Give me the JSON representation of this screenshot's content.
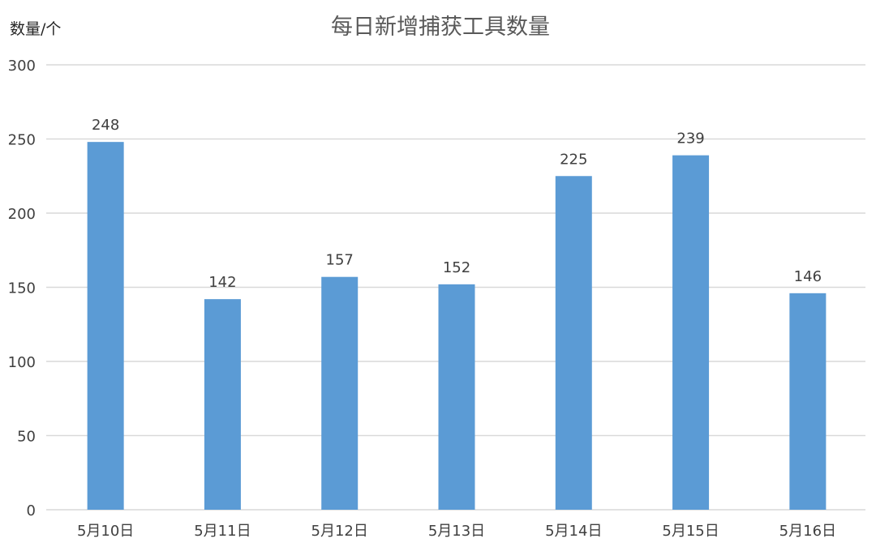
{
  "chart_data": {
    "type": "bar",
    "title": "每日新增捕获工具数量",
    "ylabel": "数量/个",
    "xlabel": "",
    "categories": [
      "5月10日",
      "5月11日",
      "5月12日",
      "5月13日",
      "5月14日",
      "5月15日",
      "5月16日"
    ],
    "values": [
      248,
      142,
      157,
      152,
      225,
      239,
      146
    ],
    "ylim": [
      0,
      300
    ],
    "yticks": [
      0,
      50,
      100,
      150,
      200,
      250,
      300
    ],
    "grid": true,
    "data_labels": true,
    "colors": {
      "bar": "#5b9bd5",
      "grid": "#d9d9d9",
      "text": "#404040"
    }
  }
}
